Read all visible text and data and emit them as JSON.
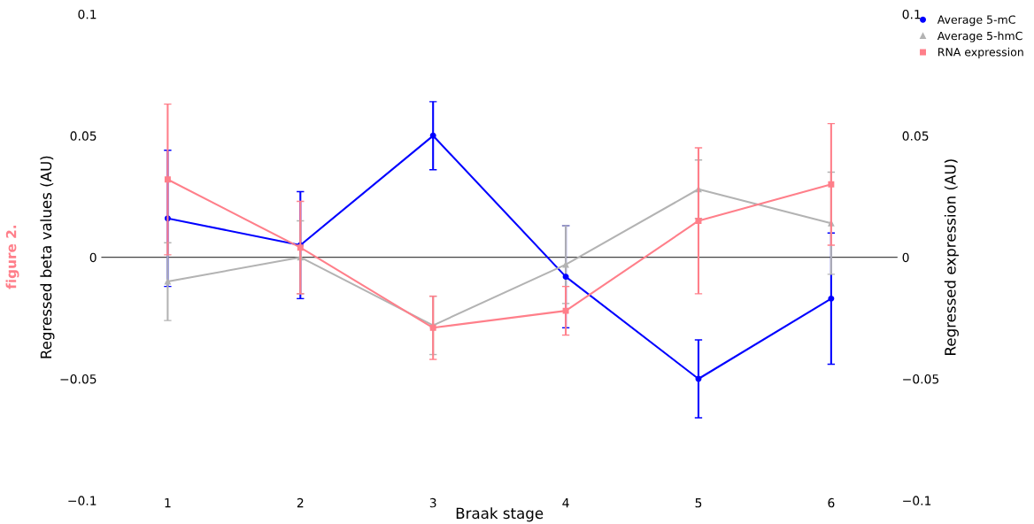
{
  "chart_data": {
    "type": "line",
    "xlabel": "Braak stage",
    "ylabel": "Regressed beta values (AU)",
    "y2label": "Regressed expression (AU)",
    "categories": [
      "1",
      "2",
      "3",
      "4",
      "5",
      "6"
    ],
    "series": [
      {
        "name": "Average 5-mC",
        "color": "#0000ff",
        "marker": "circle",
        "values": [
          0.016,
          0.005,
          0.05,
          -0.008,
          -0.05,
          -0.017
        ],
        "errors": [
          0.028,
          0.022,
          0.014,
          0.021,
          0.016,
          0.027
        ]
      },
      {
        "name": "Average 5-hmC",
        "color": "#b3b3b3",
        "marker": "triangle",
        "values": [
          -0.01,
          0.0,
          -0.028,
          -0.003,
          0.028,
          0.014
        ],
        "errors": [
          0.016,
          0.015,
          0.012,
          0.016,
          0.012,
          0.021
        ]
      },
      {
        "name": "RNA expression",
        "color": "#ff7f8a",
        "marker": "square",
        "axis": "y2",
        "values": [
          0.032,
          0.004,
          -0.029,
          -0.022,
          0.015,
          0.03
        ],
        "errors": [
          0.031,
          0.019,
          0.013,
          0.01,
          0.03,
          0.025
        ]
      }
    ],
    "ylim": [
      -0.1,
      0.1
    ],
    "yticks": [
      {
        "value": -0.1,
        "label": "−0.1"
      },
      {
        "value": -0.05,
        "label": "−0.05"
      },
      0,
      0.05,
      0.1
    ],
    "y2lim": [
      -0.1,
      0.1
    ],
    "y2ticks": [
      {
        "value": -0.1,
        "label": "−0.1"
      },
      {
        "value": -0.05,
        "label": "−0.05"
      },
      0,
      0.05,
      0.1
    ],
    "ref_lines": [
      {
        "axis": "y",
        "value": 0,
        "color": "#444444"
      }
    ],
    "annotations": [
      "figure 2."
    ],
    "grid": false,
    "legend": "top right"
  }
}
